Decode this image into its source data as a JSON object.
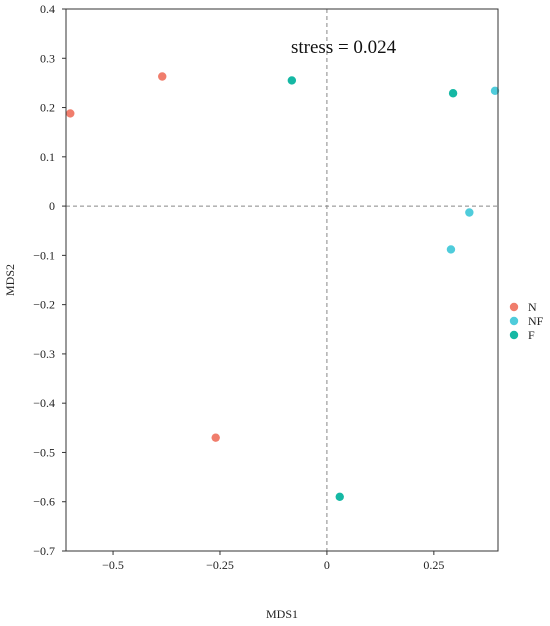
{
  "chart_data": {
    "type": "scatter",
    "title": "",
    "xlabel": "MDS1",
    "ylabel": "MDS2",
    "xlim": [
      -0.61,
      0.4
    ],
    "ylim": [
      -0.7,
      0.4
    ],
    "xticks": [
      {
        "value": -0.5,
        "label": "−0.5"
      },
      {
        "value": -0.25,
        "label": "−0.25"
      },
      {
        "value": 0,
        "label": "0"
      },
      {
        "value": 0.25,
        "label": "0.25"
      }
    ],
    "yticks": [
      {
        "value": 0.4,
        "label": "0.4"
      },
      {
        "value": 0.3,
        "label": "0.3"
      },
      {
        "value": 0.2,
        "label": "0.2"
      },
      {
        "value": 0.1,
        "label": "0.1"
      },
      {
        "value": 0,
        "label": "0"
      },
      {
        "value": -0.1,
        "label": "−0.1"
      },
      {
        "value": -0.2,
        "label": "−0.2"
      },
      {
        "value": -0.3,
        "label": "−0.3"
      },
      {
        "value": -0.4,
        "label": "−0.4"
      },
      {
        "value": -0.5,
        "label": "−0.5"
      },
      {
        "value": -0.6,
        "label": "−0.6"
      },
      {
        "value": -0.7,
        "label": "−0.7"
      }
    ],
    "annotation": "stress = 0.024",
    "grid": false,
    "reference_lines": {
      "x": 0,
      "y": 0,
      "style": "dashed"
    },
    "legend": {
      "position": "right"
    },
    "series": [
      {
        "name": "N",
        "color": "#F07D6C",
        "points": [
          {
            "x": -0.6,
            "y": 0.188
          },
          {
            "x": -0.385,
            "y": 0.263
          },
          {
            "x": -0.26,
            "y": -0.47
          }
        ]
      },
      {
        "name": "NF",
        "color": "#4FCCDB",
        "points": [
          {
            "x": 0.393,
            "y": 0.234
          },
          {
            "x": 0.333,
            "y": -0.013
          },
          {
            "x": 0.29,
            "y": -0.088
          }
        ]
      },
      {
        "name": "F",
        "color": "#15B8A4",
        "points": [
          {
            "x": -0.082,
            "y": 0.255
          },
          {
            "x": 0.295,
            "y": 0.229
          },
          {
            "x": 0.03,
            "y": -0.59
          }
        ]
      }
    ]
  }
}
